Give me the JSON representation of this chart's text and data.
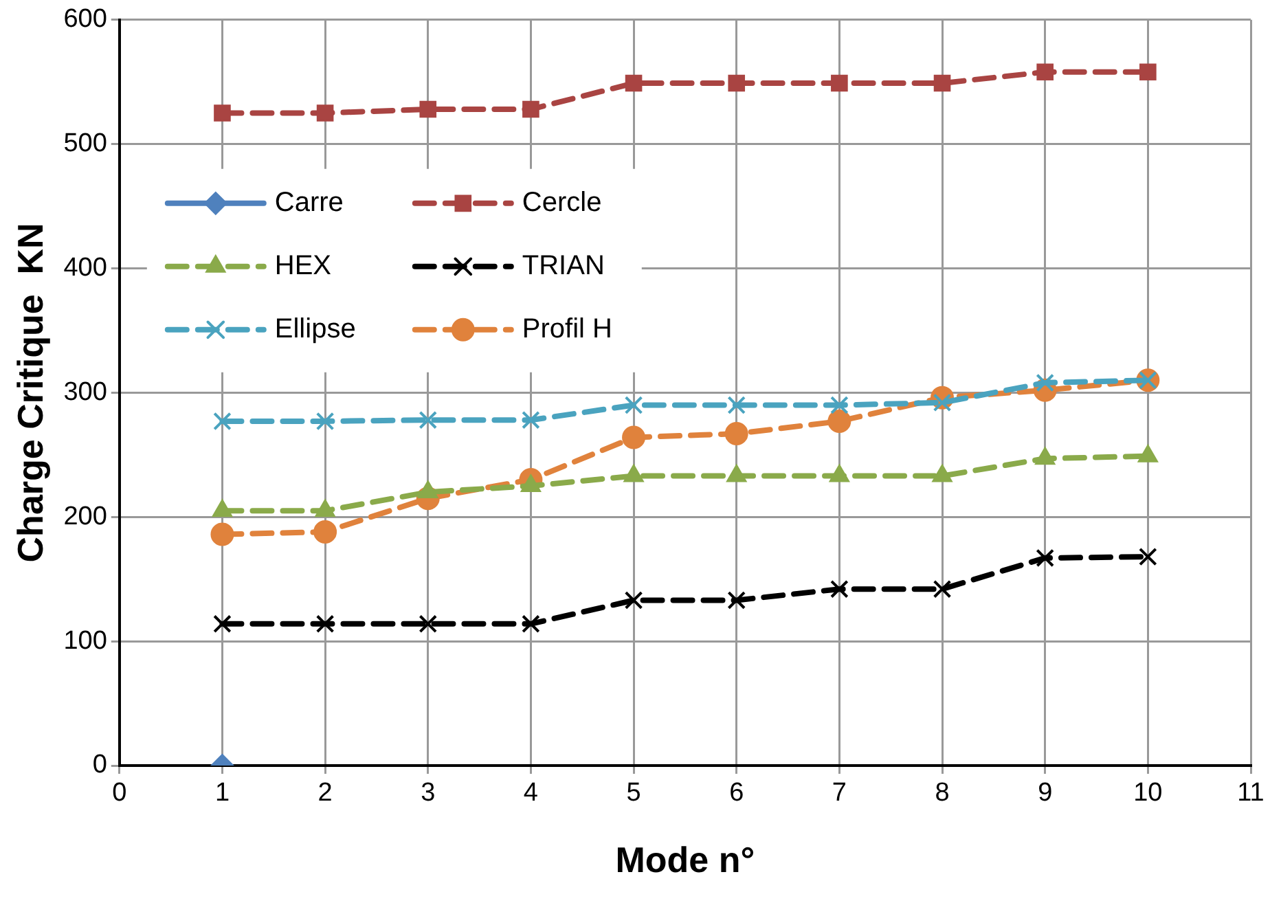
{
  "chart_data": {
    "type": "line",
    "xlabel": "Mode n°",
    "ylabel": "Charge Critique  KN",
    "x": [
      1,
      2,
      3,
      4,
      5,
      6,
      7,
      8,
      9,
      10
    ],
    "xlim": [
      0,
      11
    ],
    "xticks": [
      0,
      1,
      2,
      3,
      4,
      5,
      6,
      7,
      8,
      9,
      10,
      11
    ],
    "ylim": [
      0,
      600
    ],
    "yticks": [
      0,
      100,
      200,
      300,
      400,
      500,
      600
    ],
    "grid": true,
    "legend": "left",
    "series": [
      {
        "name": "Carre",
        "color": "#4f81bd",
        "marker": "diamond",
        "line_style": "solid",
        "values": [
          0,
          null,
          null,
          null,
          null,
          null,
          null,
          null,
          null,
          null
        ]
      },
      {
        "name": "Cercle",
        "color": "#a94442",
        "marker": "square",
        "line_style": "dashed",
        "values": [
          525,
          525,
          528,
          528,
          549,
          549,
          549,
          549,
          558,
          558
        ]
      },
      {
        "name": "HEX",
        "color": "#8aaa4a",
        "marker": "triangle",
        "line_style": "dashed",
        "values": [
          205,
          205,
          220,
          225,
          233,
          233,
          233,
          233,
          247,
          249
        ]
      },
      {
        "name": "TRIAN",
        "color": "#000000",
        "marker": "cross",
        "line_style": "dashed",
        "values": [
          114,
          114,
          114,
          114,
          133,
          133,
          142,
          142,
          167,
          168
        ]
      },
      {
        "name": "Ellipse",
        "color": "#4aa3bf",
        "marker": "cross",
        "line_style": "dashed",
        "values": [
          277,
          277,
          278,
          278,
          290,
          290,
          290,
          292,
          308,
          310
        ]
      },
      {
        "name": "Profil H",
        "color": "#e0823c",
        "marker": "circle",
        "line_style": "dashed",
        "values": [
          186,
          188,
          215,
          230,
          264,
          267,
          277,
          296,
          302,
          310
        ]
      }
    ]
  }
}
